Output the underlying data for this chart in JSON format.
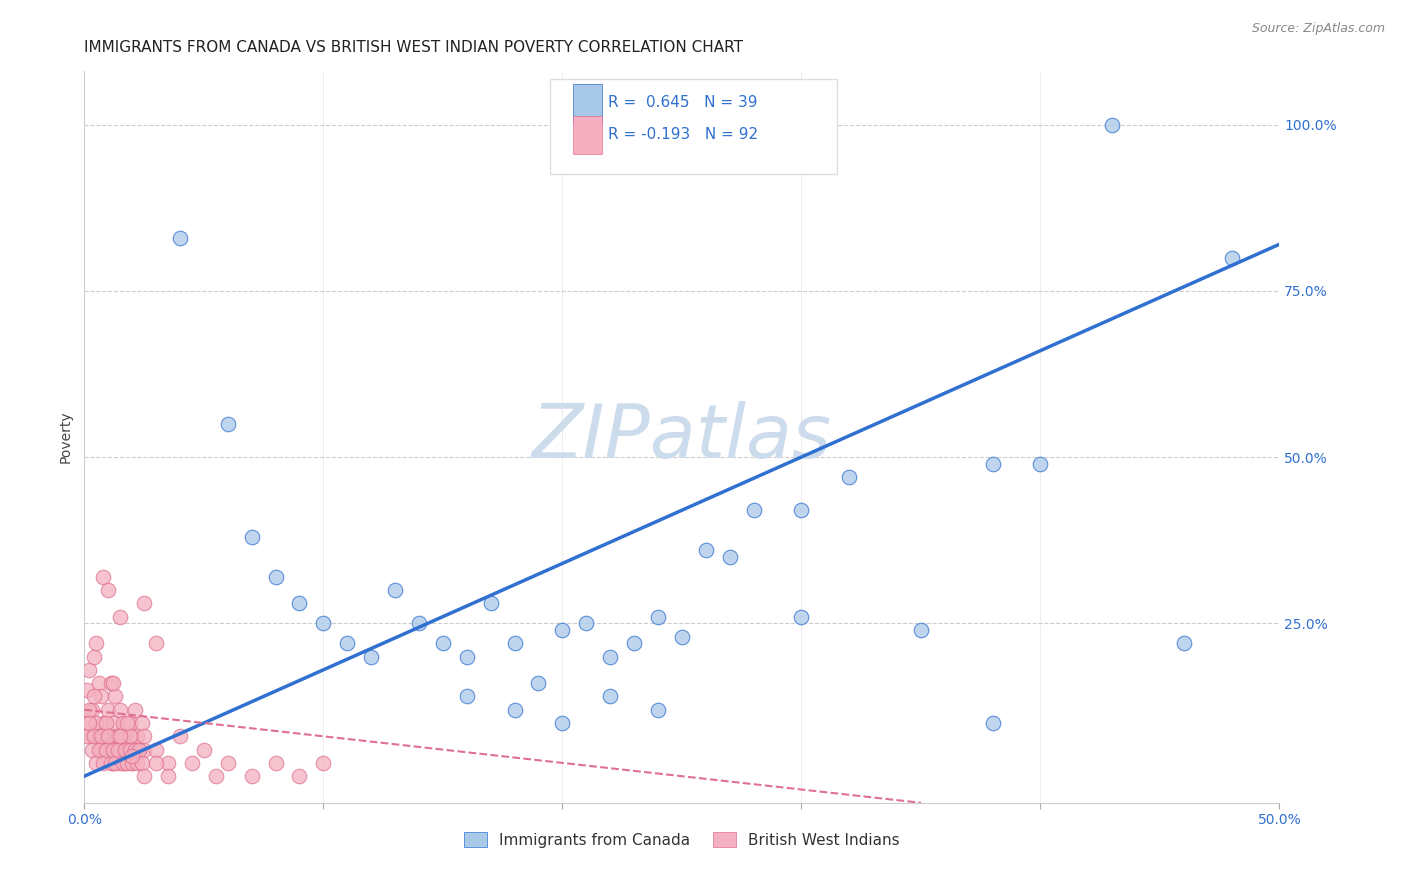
{
  "title": "IMMIGRANTS FROM CANADA VS BRITISH WEST INDIAN POVERTY CORRELATION CHART",
  "source": "Source: ZipAtlas.com",
  "ylabel": "Poverty",
  "xmin": 0.0,
  "xmax": 0.5,
  "ymin": -0.02,
  "ymax": 1.08,
  "yticks": [
    0.0,
    0.25,
    0.5,
    0.75,
    1.0
  ],
  "ytick_labels": [
    "",
    "25.0%",
    "50.0%",
    "75.0%",
    "100.0%"
  ],
  "xticks": [
    0.0,
    0.1,
    0.2,
    0.3,
    0.4,
    0.5
  ],
  "xtick_labels": [
    "0.0%",
    "",
    "",
    "",
    "",
    "50.0%"
  ],
  "blue_R": 0.645,
  "blue_N": 39,
  "pink_R": -0.193,
  "pink_N": 92,
  "blue_color": "#a8c8e8",
  "pink_color": "#f4b0c0",
  "blue_line_color": "#3070d0",
  "pink_line_color": "#e07090",
  "watermark_color": "#cddcec",
  "title_fontsize": 11,
  "legend_blue_label": "Immigrants from Canada",
  "legend_pink_label": "British West Indians",
  "blue_line_x0": 0.0,
  "blue_line_y0": 0.02,
  "blue_line_x1": 0.5,
  "blue_line_y1": 0.82,
  "pink_line_x0": 0.0,
  "pink_line_y0": 0.12,
  "pink_line_x1": 0.35,
  "pink_line_y1": -0.02,
  "blue_scatter_x": [
    0.04,
    0.06,
    0.07,
    0.08,
    0.09,
    0.1,
    0.11,
    0.12,
    0.13,
    0.14,
    0.15,
    0.16,
    0.17,
    0.18,
    0.19,
    0.2,
    0.21,
    0.22,
    0.23,
    0.24,
    0.25,
    0.26,
    0.27,
    0.28,
    0.3,
    0.32,
    0.38,
    0.4,
    0.46,
    0.48,
    0.16,
    0.18,
    0.2,
    0.22,
    0.24,
    0.3,
    0.35,
    0.38,
    0.43
  ],
  "blue_scatter_y": [
    0.83,
    0.55,
    0.38,
    0.32,
    0.28,
    0.25,
    0.22,
    0.2,
    0.3,
    0.25,
    0.22,
    0.2,
    0.28,
    0.22,
    0.16,
    0.24,
    0.25,
    0.2,
    0.22,
    0.26,
    0.23,
    0.36,
    0.35,
    0.42,
    0.42,
    0.47,
    0.49,
    0.49,
    0.22,
    0.8,
    0.14,
    0.12,
    0.1,
    0.14,
    0.12,
    0.26,
    0.24,
    0.1,
    1.0
  ],
  "pink_scatter_x": [
    0.001,
    0.002,
    0.003,
    0.004,
    0.005,
    0.006,
    0.007,
    0.008,
    0.009,
    0.01,
    0.011,
    0.012,
    0.013,
    0.014,
    0.015,
    0.016,
    0.017,
    0.018,
    0.019,
    0.02,
    0.021,
    0.022,
    0.023,
    0.024,
    0.025,
    0.001,
    0.002,
    0.003,
    0.004,
    0.005,
    0.006,
    0.007,
    0.008,
    0.009,
    0.01,
    0.011,
    0.012,
    0.013,
    0.014,
    0.015,
    0.016,
    0.017,
    0.018,
    0.019,
    0.02,
    0.001,
    0.002,
    0.003,
    0.004,
    0.005,
    0.006,
    0.007,
    0.008,
    0.009,
    0.01,
    0.011,
    0.012,
    0.013,
    0.014,
    0.015,
    0.016,
    0.017,
    0.018,
    0.019,
    0.02,
    0.021,
    0.022,
    0.023,
    0.024,
    0.025,
    0.03,
    0.035,
    0.04,
    0.045,
    0.05,
    0.06,
    0.07,
    0.08,
    0.09,
    0.1,
    0.025,
    0.03,
    0.008,
    0.01,
    0.012,
    0.015,
    0.018,
    0.02,
    0.025,
    0.03,
    0.035,
    0.055
  ],
  "pink_scatter_y": [
    0.15,
    0.18,
    0.12,
    0.2,
    0.22,
    0.16,
    0.14,
    0.1,
    0.08,
    0.12,
    0.16,
    0.1,
    0.14,
    0.08,
    0.12,
    0.1,
    0.08,
    0.06,
    0.1,
    0.08,
    0.12,
    0.08,
    0.06,
    0.1,
    0.06,
    0.1,
    0.12,
    0.08,
    0.14,
    0.1,
    0.08,
    0.06,
    0.08,
    0.1,
    0.06,
    0.08,
    0.04,
    0.06,
    0.08,
    0.04,
    0.06,
    0.04,
    0.06,
    0.08,
    0.04,
    0.08,
    0.1,
    0.06,
    0.08,
    0.04,
    0.06,
    0.08,
    0.04,
    0.06,
    0.08,
    0.04,
    0.06,
    0.04,
    0.06,
    0.08,
    0.04,
    0.06,
    0.04,
    0.06,
    0.04,
    0.06,
    0.04,
    0.06,
    0.04,
    0.02,
    0.06,
    0.04,
    0.08,
    0.04,
    0.06,
    0.04,
    0.02,
    0.04,
    0.02,
    0.04,
    0.28,
    0.22,
    0.32,
    0.3,
    0.16,
    0.26,
    0.1,
    0.05,
    0.08,
    0.04,
    0.02,
    0.02
  ]
}
